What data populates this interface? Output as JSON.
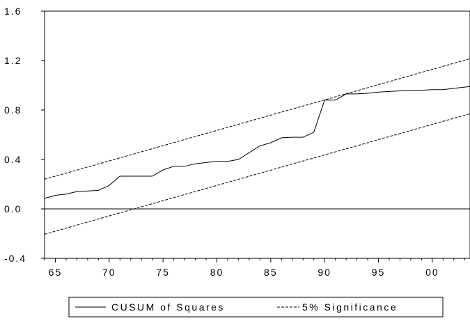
{
  "chart_data": {
    "type": "line",
    "title": "",
    "xlabel": "",
    "ylabel": "",
    "xlim": [
      1964,
      2003.5
    ],
    "ylim": [
      -0.4,
      1.6
    ],
    "grid": false,
    "legend_position": "bottom",
    "x_ticks": [
      {
        "value": 1965,
        "label": "65"
      },
      {
        "value": 1970,
        "label": "70"
      },
      {
        "value": 1975,
        "label": "75"
      },
      {
        "value": 1980,
        "label": "80"
      },
      {
        "value": 1985,
        "label": "85"
      },
      {
        "value": 1990,
        "label": "90"
      },
      {
        "value": 1995,
        "label": "95"
      },
      {
        "value": 2000,
        "label": "00"
      }
    ],
    "y_ticks": [
      {
        "value": -0.4,
        "label": "-0.4"
      },
      {
        "value": 0.0,
        "label": "0.0"
      },
      {
        "value": 0.4,
        "label": "0.4"
      },
      {
        "value": 0.8,
        "label": "0.8"
      },
      {
        "value": 1.2,
        "label": "1.2"
      },
      {
        "value": 1.6,
        "label": "1.6"
      }
    ],
    "zero_line": 0.0,
    "series": [
      {
        "name": "CUSUM of Squares",
        "style": "solid",
        "color": "#000000",
        "x": [
          1964,
          1965,
          1966,
          1967,
          1968,
          1969,
          1970,
          1971,
          1972,
          1973,
          1974,
          1975,
          1976,
          1977,
          1978,
          1979,
          1980,
          1981,
          1982,
          1983,
          1984,
          1985,
          1986,
          1987,
          1988,
          1989,
          1990,
          1991,
          1992,
          1993,
          1994,
          1995,
          1996,
          1997,
          1998,
          1999,
          2000,
          2001,
          2002,
          2003.5
        ],
        "y": [
          0.085,
          0.11,
          0.12,
          0.14,
          0.145,
          0.15,
          0.19,
          0.265,
          0.265,
          0.265,
          0.265,
          0.315,
          0.345,
          0.345,
          0.365,
          0.375,
          0.385,
          0.385,
          0.4,
          0.455,
          0.51,
          0.535,
          0.575,
          0.58,
          0.58,
          0.62,
          0.88,
          0.88,
          0.93,
          0.93,
          0.935,
          0.945,
          0.95,
          0.955,
          0.96,
          0.96,
          0.965,
          0.965,
          0.975,
          0.99
        ]
      },
      {
        "name": "5% Significance",
        "style": "dashed",
        "color": "#000000",
        "x": [
          1964,
          2003.5
        ],
        "y": [
          0.24,
          1.215
        ]
      },
      {
        "name": "5% Significance (lower)",
        "style": "dashed",
        "color": "#000000",
        "x": [
          1964,
          2003.5
        ],
        "y": [
          -0.205,
          0.77
        ]
      }
    ],
    "legend": [
      {
        "label": "CUSUM of Squares",
        "style": "solid"
      },
      {
        "label": "5% Significance",
        "style": "dashed"
      }
    ]
  }
}
